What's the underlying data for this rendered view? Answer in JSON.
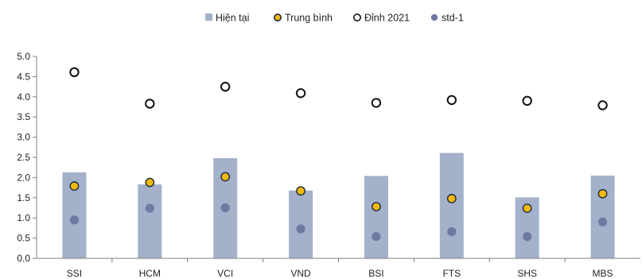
{
  "chart_data": {
    "type": "bar",
    "categories": [
      "SSI",
      "HCM",
      "VCI",
      "VND",
      "BSI",
      "FTS",
      "SHS",
      "MBS"
    ],
    "series": [
      {
        "name": "Hiện tại",
        "kind": "bar",
        "color": "#a3b1cb",
        "values": [
          2.13,
          1.83,
          2.48,
          1.68,
          2.04,
          2.61,
          1.51,
          2.05
        ]
      },
      {
        "name": "Trung bình",
        "kind": "point",
        "color": "#f0b90b",
        "values": [
          1.79,
          1.88,
          2.02,
          1.67,
          1.28,
          1.48,
          1.24,
          1.6
        ]
      },
      {
        "name": "Đỉnh 2021",
        "kind": "point",
        "color": "#ffffff",
        "values": [
          4.61,
          3.83,
          4.25,
          4.09,
          3.85,
          3.92,
          3.9,
          3.79
        ]
      },
      {
        "name": "std-1",
        "kind": "point",
        "color": "#6f7aa3",
        "values": [
          0.95,
          1.24,
          1.25,
          0.73,
          0.54,
          0.66,
          0.54,
          0.9
        ]
      }
    ],
    "ylim": [
      0,
      5
    ],
    "yticks": [
      "0.0",
      "0.5",
      "1.0",
      "1.5",
      "2.0",
      "2.5",
      "3.0",
      "3.5",
      "4.0",
      "4.5",
      "5.0"
    ],
    "legend_position": "top-center",
    "grid": false
  }
}
